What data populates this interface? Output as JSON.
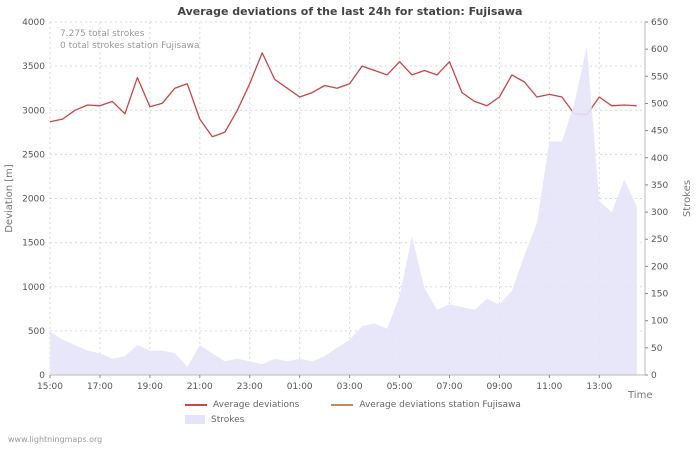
{
  "chart_data": {
    "type": "line",
    "title": "Average deviations of the last 24h for station: Fujisawa",
    "xlabel": "Time",
    "ylabel_left": "Deviation [m]",
    "ylabel_right": "Strokes",
    "ylim_left": [
      0,
      4000
    ],
    "ylim_right": [
      0,
      650
    ],
    "yticks_left": [
      0,
      500,
      1000,
      1500,
      2000,
      2500,
      3000,
      3500,
      4000
    ],
    "yticks_right": [
      0,
      50,
      100,
      150,
      200,
      250,
      300,
      350,
      400,
      450,
      500,
      550,
      600,
      650
    ],
    "x_tick_labels": [
      "15:00",
      "17:00",
      "19:00",
      "21:00",
      "23:00",
      "01:00",
      "03:00",
      "05:00",
      "07:00",
      "09:00",
      "11:00",
      "13:00"
    ],
    "x_tick_hours": [
      0,
      2,
      4,
      6,
      8,
      10,
      12,
      14,
      16,
      18,
      20,
      22
    ],
    "x_axis_span_hours": 23.83,
    "x_hours": [
      0,
      0.5,
      1,
      1.5,
      2,
      2.5,
      3,
      3.5,
      4,
      4.5,
      5,
      5.5,
      6,
      6.5,
      7,
      7.5,
      8,
      8.5,
      9,
      9.5,
      10,
      10.5,
      11,
      11.5,
      12,
      12.5,
      13,
      13.5,
      14,
      14.5,
      15,
      15.5,
      16,
      16.5,
      17,
      17.5,
      18,
      18.5,
      19,
      19.5,
      20,
      20.5,
      21,
      21.5,
      22,
      22.5,
      23,
      23.5
    ],
    "grid": true,
    "legend_position": "bottom",
    "series": [
      {
        "name": "Average deviations",
        "type": "line",
        "axis": "left",
        "color": "#cc4444",
        "values": [
          2870,
          2900,
          3000,
          3060,
          3050,
          3100,
          2960,
          3370,
          3040,
          3080,
          3250,
          3300,
          2900,
          2700,
          2750,
          3000,
          3300,
          3650,
          3350,
          3250,
          3150,
          3200,
          3280,
          3250,
          3300,
          3500,
          3450,
          3400,
          3550,
          3400,
          3450,
          3400,
          3550,
          3200,
          3100,
          3050,
          3150,
          3400,
          3320,
          3150,
          3180,
          3150,
          2960,
          2950,
          3150,
          3050,
          3060,
          3050
        ]
      },
      {
        "name": "Average deviations station Fujisawa",
        "type": "line",
        "axis": "left",
        "color": "#cc8855",
        "values": []
      },
      {
        "name": "Strokes",
        "type": "area",
        "axis": "right",
        "color": "#e4e4f8",
        "values": [
          80,
          65,
          55,
          45,
          40,
          30,
          35,
          55,
          45,
          45,
          40,
          15,
          55,
          40,
          25,
          30,
          25,
          20,
          30,
          25,
          30,
          25,
          35,
          50,
          65,
          90,
          95,
          85,
          145,
          255,
          160,
          120,
          130,
          125,
          120,
          140,
          130,
          155,
          220,
          280,
          430,
          430,
          500,
          605,
          320,
          300,
          360,
          310
        ]
      }
    ]
  },
  "annotations": {
    "total_strokes": "7.275 total strokes",
    "station_strokes": "0 total strokes station Fujisawa"
  },
  "watermark": "www.lightningmaps.org"
}
